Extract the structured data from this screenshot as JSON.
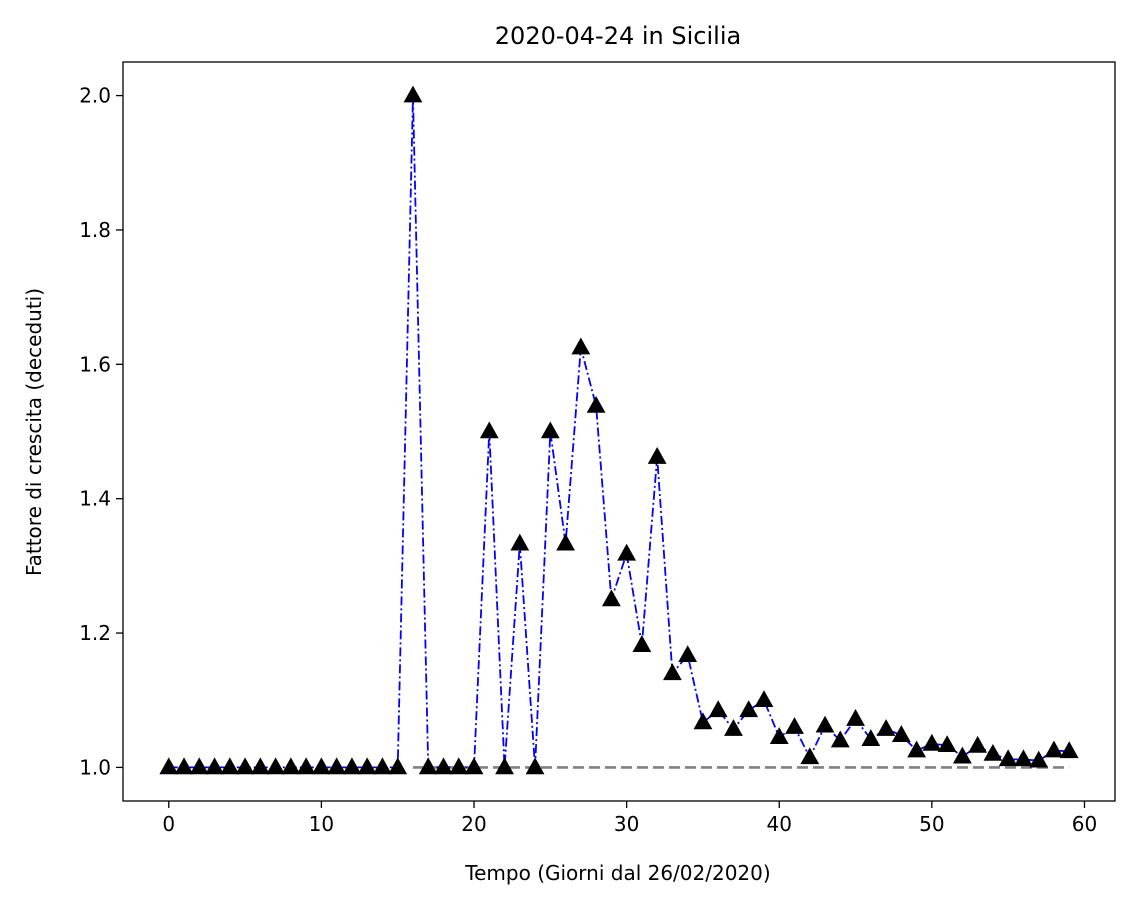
{
  "chart_data": {
    "type": "line",
    "title": "2020-04-24 in Sicilia",
    "xlabel": "Tempo (Giorni dal 26/02/2020)",
    "ylabel": "Fattore di crescita (deceduti)",
    "xlim": [
      -3,
      62
    ],
    "ylim": [
      0.95,
      2.05
    ],
    "xticks": [
      0,
      10,
      20,
      30,
      40,
      50,
      60
    ],
    "yticks": [
      1.0,
      1.2,
      1.4,
      1.6,
      1.8,
      2.0
    ],
    "xtick_labels": [
      "0",
      "10",
      "20",
      "30",
      "40",
      "50",
      "60"
    ],
    "ytick_labels": [
      "1.0",
      "1.2",
      "1.4",
      "1.6",
      "1.8",
      "2.0"
    ],
    "grid": false,
    "series": [
      {
        "style": "dash-dot line with triangle markers",
        "line_color": "#0000ff",
        "marker_color": "#000000",
        "x": [
          0,
          1,
          2,
          3,
          4,
          5,
          6,
          7,
          8,
          9,
          10,
          11,
          12,
          13,
          14,
          15,
          16,
          17,
          18,
          19,
          20,
          21,
          22,
          23,
          24,
          25,
          26,
          27,
          28,
          29,
          30,
          31,
          32,
          33,
          34,
          35,
          36,
          37,
          38,
          39,
          40,
          41,
          42,
          43,
          44,
          45,
          46,
          47,
          48,
          49,
          50,
          51,
          52,
          53,
          54,
          55,
          56,
          57,
          58,
          59
        ],
        "y": [
          1.0,
          1.0,
          1.0,
          1.0,
          1.0,
          1.0,
          1.0,
          1.0,
          1.0,
          1.0,
          1.0,
          1.0,
          1.0,
          1.0,
          1.0,
          1.0,
          2.0,
          1.0,
          1.0,
          1.0,
          1.0,
          1.5,
          1.0,
          1.333,
          1.0,
          1.5,
          1.333,
          1.625,
          1.538,
          1.25,
          1.318,
          1.182,
          1.462,
          1.14,
          1.167,
          1.067,
          1.085,
          1.057,
          1.085,
          1.1,
          1.045,
          1.06,
          1.015,
          1.062,
          1.04,
          1.072,
          1.042,
          1.057,
          1.048,
          1.025,
          1.035,
          1.033,
          1.016,
          1.032,
          1.02,
          1.012,
          1.012,
          1.01,
          1.025,
          1.024
        ]
      },
      {
        "style": "dashed reference line",
        "line_color": "#808080",
        "x": [
          16,
          59
        ],
        "y": [
          1.0,
          1.0
        ]
      }
    ]
  }
}
